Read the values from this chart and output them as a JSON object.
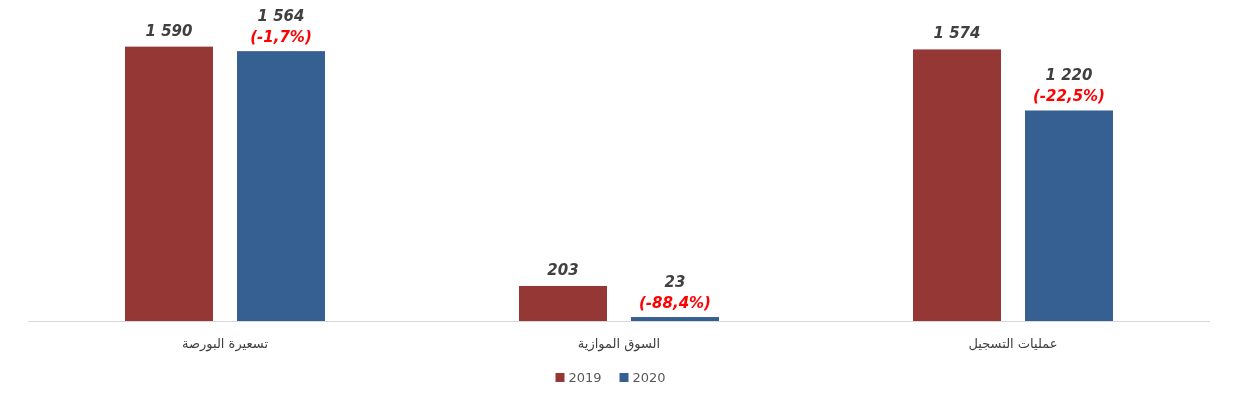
{
  "chart_data": {
    "type": "bar",
    "categories": [
      "تسعيرة البورصة",
      "السوق الموازية",
      "عمليات التسجيل"
    ],
    "series": [
      {
        "name": "2019",
        "color": "#953735",
        "values": [
          1590,
          203,
          1574
        ],
        "value_labels": [
          "1 590",
          "203",
          "1 574"
        ]
      },
      {
        "name": "2020",
        "color": "#376092",
        "values": [
          1564,
          23,
          1220
        ],
        "value_labels": [
          "1 564",
          "23",
          "1 220"
        ]
      }
    ],
    "annotations": [
      "(-1,7%)",
      "(-88,4%)",
      "(-22,5%)"
    ],
    "legend": "bottom"
  }
}
